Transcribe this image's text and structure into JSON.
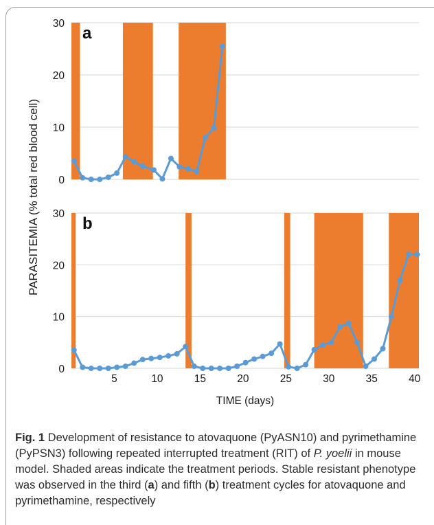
{
  "chart_data": [
    {
      "type": "line",
      "panel_label": "a",
      "ylim": [
        0,
        30
      ],
      "yticks": [
        "0",
        "10",
        "20",
        "30"
      ],
      "xlim": [
        0,
        40.5
      ],
      "treatment_periods": [
        [
          0,
          1
        ],
        [
          6,
          9.5
        ],
        [
          12.5,
          18
        ]
      ],
      "series": [
        {
          "x": [
            0.3,
            1.3,
            2.3,
            3.3,
            4.3,
            5.3,
            6.3,
            7.3,
            8.3,
            9.6,
            10.6,
            11.6,
            12.6,
            13.6,
            14.6,
            15.6,
            16.6,
            17.6
          ],
          "values": [
            3.5,
            0.3,
            0.0,
            0.0,
            0.4,
            1.2,
            4.3,
            3.4,
            2.5,
            1.8,
            0.1,
            4.0,
            2.4,
            2.0,
            1.5,
            8.0,
            9.8,
            25.5
          ]
        }
      ]
    },
    {
      "type": "line",
      "panel_label": "b",
      "ylim": [
        0,
        30
      ],
      "yticks": [
        "0",
        "10",
        "20",
        "30"
      ],
      "xlim": [
        0,
        40.5
      ],
      "xticks": [
        "5",
        "10",
        "15",
        "20",
        "25",
        "30",
        "35",
        "40"
      ],
      "xtick_values": [
        5,
        10,
        15,
        20,
        25,
        30,
        35,
        40
      ],
      "xlabel": "TIME (days)",
      "treatment_periods": [
        [
          0,
          0.5
        ],
        [
          13.3,
          14
        ],
        [
          24.8,
          25.5
        ],
        [
          28.3,
          34
        ],
        [
          37,
          41
        ]
      ],
      "series": [
        {
          "x": [
            0.3,
            1.3,
            2.3,
            3.3,
            4.3,
            5.3,
            6.3,
            7.3,
            8.3,
            9.3,
            10.3,
            11.3,
            12.3,
            13.3,
            14.3,
            15.3,
            16.3,
            17.3,
            18.3,
            19.3,
            20.3,
            21.3,
            22.3,
            23.3,
            24.3,
            25.3,
            26.3,
            27.3,
            28.3,
            29.3,
            30.3,
            31.3,
            32.3,
            33.3,
            34.3,
            35.3,
            36.3,
            37.3,
            38.3,
            39.3,
            40.3
          ],
          "values": [
            3.5,
            0.2,
            0.0,
            0.0,
            0.0,
            0.2,
            0.4,
            1.0,
            1.7,
            1.9,
            2.1,
            2.4,
            2.8,
            4.2,
            0.4,
            0.0,
            0.0,
            0.0,
            0.0,
            0.4,
            1.1,
            1.8,
            2.3,
            2.9,
            4.7,
            0.3,
            0.0,
            0.7,
            3.6,
            4.5,
            5.0,
            8.0,
            8.7,
            5.0,
            0.4,
            1.8,
            3.8,
            10.0,
            17.0,
            22.0,
            22.0
          ]
        }
      ]
    }
  ],
  "shared": {
    "ylabel": "PARASITEMIA (% total red blood cell)",
    "colors": {
      "treatment": "#EC7D2F",
      "line": "#5B9BD5",
      "grid": "#d6d6d6",
      "text": "#1a1a1a"
    }
  },
  "caption": {
    "fig_label": "Fig. 1",
    "seg1": "  Development of resistance to atovaquone (PyASN10) and pyrimethamine (PyPSN3) following repeated interrupted treatment (RIT) of ",
    "species": "P. yoelii",
    "seg2": " in mouse model. Shaded areas indicate the treatment periods. Stable resistant phenotype was observed in the third (",
    "ref_a": "a",
    "seg3": ") and fifth (",
    "ref_b": "b",
    "seg4": ") treatment cycles for atovaquone and pyrimethamine, respectively"
  }
}
